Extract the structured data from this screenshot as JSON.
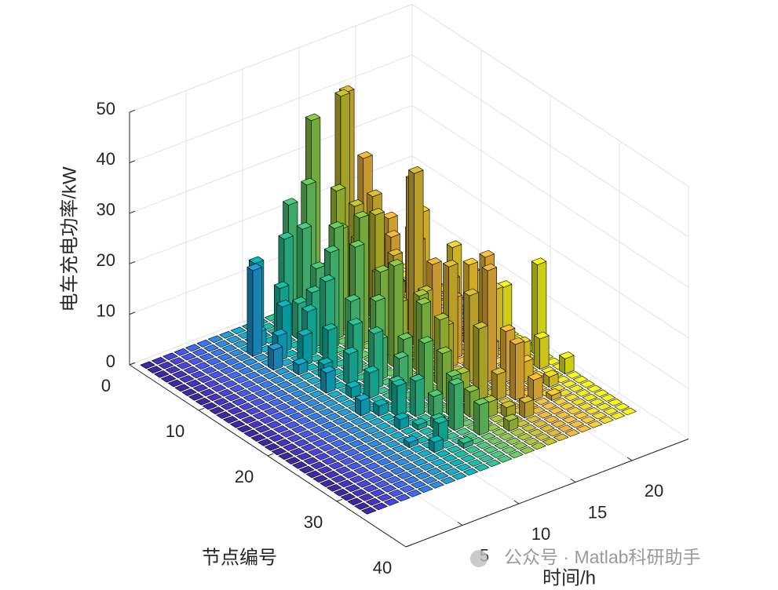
{
  "chart_data": {
    "type": "bar3",
    "xlabel": "时间/h",
    "ylabel": "节点编号",
    "zlabel": "电车充电功率/kW",
    "watermark": "公众号 · Matlab科研助手",
    "x": [
      1,
      2,
      3,
      4,
      5,
      6,
      7,
      8,
      9,
      10,
      11,
      12,
      13,
      14,
      15,
      16,
      17,
      18,
      19,
      20,
      21,
      22,
      23,
      24
    ],
    "y": [
      1,
      2,
      3,
      4,
      5,
      6,
      7,
      8,
      9,
      10,
      11,
      12,
      13,
      14,
      15,
      16,
      17,
      18,
      19,
      20,
      21,
      22,
      23,
      24,
      25,
      26,
      27,
      28,
      29,
      30,
      31,
      32,
      33
    ],
    "colors": [
      "#3e26a8",
      "#4433c8",
      "#4744e3",
      "#4656f5",
      "#3f69fd",
      "#2f7cf6",
      "#2a8ee7",
      "#1f9fdb",
      "#12afd0",
      "#06b9bf",
      "#14c2aa",
      "#2ec895",
      "#4acd7d",
      "#6acf62",
      "#8dcd48",
      "#accb37",
      "#c8c52e",
      "#e1bf32",
      "#f4bb3b",
      "#fdc13a",
      "#fbcf31",
      "#f6de28",
      "#f6ee1f",
      "#f9fb15"
    ],
    "values": [
      [
        0,
        0,
        0,
        0,
        0,
        0,
        0,
        0,
        0,
        0,
        0,
        0,
        0,
        0,
        0,
        0,
        0,
        0,
        0,
        0,
        0,
        0,
        0,
        0
      ],
      [
        0,
        0,
        0,
        0,
        0,
        0,
        0,
        0,
        0,
        14,
        0,
        0,
        23,
        0,
        38,
        0,
        0,
        41,
        0,
        0,
        0,
        0,
        0,
        0
      ],
      [
        0,
        0,
        0,
        0,
        0,
        0,
        0,
        0,
        0,
        0,
        0,
        18,
        0,
        27,
        0,
        0,
        42,
        0,
        28,
        0,
        0,
        0,
        0,
        0
      ],
      [
        0,
        0,
        0,
        0,
        0,
        0,
        0,
        0,
        3,
        0,
        10,
        0,
        20,
        0,
        0,
        25,
        0,
        0,
        0,
        0,
        0,
        0,
        0,
        0
      ],
      [
        0,
        0,
        0,
        0,
        0,
        0,
        0,
        17,
        0,
        0,
        0,
        7,
        0,
        12,
        0,
        0,
        22,
        0,
        0,
        17,
        0,
        13,
        0,
        0
      ],
      [
        0,
        0,
        0,
        0,
        0,
        0,
        0,
        0,
        0,
        9,
        0,
        0,
        14,
        0,
        20,
        0,
        0,
        24,
        0,
        0,
        0,
        0,
        0,
        0
      ],
      [
        0,
        0,
        0,
        0,
        0,
        0,
        0,
        0,
        5,
        0,
        0,
        11,
        0,
        22,
        0,
        18,
        0,
        0,
        16,
        0,
        0,
        0,
        0,
        0
      ],
      [
        0,
        0,
        0,
        0,
        0,
        0,
        0,
        4,
        0,
        0,
        9,
        0,
        19,
        0,
        0,
        0,
        23,
        0,
        0,
        0,
        20,
        0,
        0,
        0
      ],
      [
        0,
        0,
        0,
        0,
        0,
        0,
        0,
        0,
        0,
        6,
        0,
        15,
        0,
        0,
        25,
        0,
        0,
        15,
        0,
        16,
        0,
        0,
        0,
        0
      ],
      [
        0,
        0,
        0,
        0,
        0,
        0,
        0,
        0,
        2,
        0,
        0,
        0,
        0,
        21,
        0,
        14,
        0,
        0,
        30,
        0,
        0,
        0,
        0,
        0
      ],
      [
        0,
        0,
        0,
        0,
        0,
        0,
        0,
        0,
        0,
        0,
        8,
        0,
        12,
        0,
        0,
        0,
        12,
        0,
        0,
        0,
        0,
        15,
        0,
        0
      ],
      [
        0,
        0,
        0,
        0,
        0,
        0,
        0,
        0,
        0,
        3,
        0,
        0,
        0,
        0,
        17,
        0,
        0,
        34,
        0,
        0,
        0,
        0,
        10,
        0
      ],
      [
        0,
        0,
        0,
        0,
        0,
        0,
        0,
        0,
        0,
        0,
        0,
        10,
        0,
        13,
        0,
        11,
        0,
        0,
        16,
        0,
        0,
        0,
        0,
        0
      ],
      [
        0,
        0,
        0,
        0,
        0,
        0,
        0,
        0,
        4,
        0,
        6,
        0,
        0,
        0,
        20,
        0,
        0,
        0,
        0,
        13,
        0,
        0,
        0,
        0
      ],
      [
        0,
        0,
        0,
        0,
        0,
        0,
        0,
        0,
        0,
        0,
        0,
        0,
        8,
        0,
        0,
        0,
        14,
        0,
        0,
        0,
        16,
        0,
        0,
        9
      ],
      [
        0,
        0,
        0,
        0,
        0,
        0,
        0,
        0,
        0,
        2,
        0,
        11,
        0,
        0,
        0,
        15,
        0,
        0,
        12,
        0,
        0,
        0,
        0,
        0
      ],
      [
        0,
        0,
        0,
        0,
        0,
        0,
        0,
        0,
        0,
        0,
        5,
        0,
        0,
        9,
        0,
        0,
        0,
        20,
        0,
        0,
        0,
        12,
        0,
        0
      ],
      [
        0,
        0,
        0,
        0,
        0,
        0,
        0,
        0,
        0,
        0,
        0,
        0,
        7,
        0,
        16,
        0,
        10,
        0,
        0,
        0,
        3,
        0,
        0,
        0
      ],
      [
        0,
        0,
        0,
        0,
        0,
        0,
        0,
        0,
        3,
        0,
        0,
        4,
        0,
        0,
        0,
        13,
        0,
        0,
        0,
        22,
        0,
        0,
        2,
        0
      ],
      [
        0,
        0,
        0,
        0,
        0,
        0,
        0,
        0,
        0,
        2,
        0,
        0,
        0,
        11,
        0,
        0,
        0,
        17,
        0,
        0,
        0,
        0,
        0,
        18
      ],
      [
        0,
        0,
        0,
        0,
        0,
        0,
        0,
        0,
        0,
        0,
        6,
        0,
        0,
        0,
        9,
        0,
        0,
        0,
        22,
        0,
        0,
        5,
        0,
        0
      ],
      [
        0,
        0,
        0,
        0,
        0,
        0,
        0,
        0,
        0,
        0,
        0,
        7,
        0,
        0,
        0,
        5,
        0,
        0,
        0,
        10,
        0,
        0,
        6,
        0
      ],
      [
        0,
        0,
        0,
        0,
        0,
        0,
        0,
        0,
        0,
        2,
        0,
        0,
        4,
        0,
        0,
        0,
        14,
        0,
        0,
        0,
        4,
        0,
        0,
        0
      ],
      [
        0,
        0,
        0,
        0,
        0,
        0,
        0,
        0,
        0,
        0,
        1,
        0,
        0,
        8,
        0,
        0,
        0,
        5,
        0,
        0,
        0,
        0,
        0,
        3
      ],
      [
        0,
        0,
        0,
        0,
        0,
        0,
        0,
        0,
        0,
        0,
        0,
        2,
        0,
        0,
        5,
        0,
        0,
        0,
        11,
        0,
        0,
        2,
        0,
        0
      ],
      [
        0,
        0,
        0,
        0,
        0,
        0,
        0,
        0,
        1,
        0,
        0,
        0,
        9,
        0,
        0,
        3,
        0,
        0,
        0,
        4,
        0,
        0,
        0,
        0
      ],
      [
        0,
        0,
        0,
        0,
        0,
        0,
        0,
        0,
        0,
        0,
        4,
        0,
        0,
        0,
        0,
        0,
        2,
        0,
        0,
        0,
        1,
        0,
        0,
        0
      ],
      [
        0,
        0,
        0,
        0,
        0,
        0,
        0,
        0,
        0,
        2,
        0,
        0,
        0,
        6,
        0,
        0,
        0,
        3,
        0,
        0,
        0,
        0,
        0,
        0
      ],
      [
        0,
        0,
        0,
        0,
        0,
        0,
        0,
        0,
        0,
        0,
        0,
        1,
        0,
        0,
        0,
        2,
        0,
        0,
        0,
        0,
        0,
        0,
        0,
        0
      ],
      [
        0,
        0,
        0,
        0,
        0,
        0,
        0,
        0,
        0,
        0,
        0,
        0,
        0,
        0,
        0,
        0,
        0,
        0,
        0,
        0,
        0,
        0,
        0,
        0
      ],
      [
        0,
        0,
        0,
        0,
        0,
        0,
        0,
        0,
        0,
        0,
        0,
        0,
        0,
        0,
        0,
        0,
        0,
        0,
        0,
        0,
        0,
        0,
        0,
        0
      ],
      [
        0,
        0,
        0,
        0,
        0,
        0,
        0,
        0,
        0,
        0,
        0,
        0,
        0,
        0,
        0,
        0,
        0,
        0,
        0,
        0,
        0,
        0,
        0,
        0
      ],
      [
        0,
        0,
        0,
        0,
        0,
        0,
        0,
        0,
        0,
        0,
        0,
        0,
        0,
        0,
        0,
        0,
        0,
        0,
        0,
        0,
        0,
        0,
        0,
        0
      ]
    ],
    "xlim": [
      0,
      25
    ],
    "xticks": [
      5,
      10,
      15,
      20
    ],
    "ylim": [
      0,
      40
    ],
    "yticks": [
      0,
      10,
      20,
      30,
      40
    ],
    "zlim": [
      0,
      50
    ],
    "zticks": [
      0,
      10,
      20,
      30,
      40,
      50
    ],
    "grid": true
  }
}
